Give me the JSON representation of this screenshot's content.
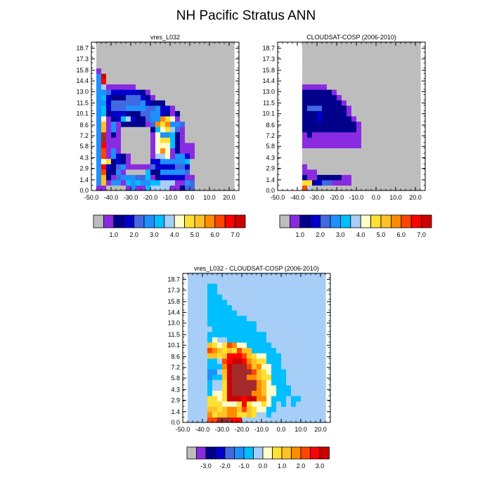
{
  "title": "NH Pacific Stratus ANN",
  "colors": {
    "missing": "#bdbdbd",
    "palette": [
      "#8a2be2",
      "#00008b",
      "#0000cd",
      "#4169e1",
      "#1e90ff",
      "#00bfff",
      "#a6cef7",
      "#ffffcc",
      "#ffe033",
      "#ffc125",
      "#ff8c00",
      "#ff4500",
      "#ff0000",
      "#cd0000",
      "#a52a2a",
      "#ff69b4"
    ]
  },
  "chart_data": [
    {
      "id": "model",
      "type": "heatmap",
      "title": "vres_L032",
      "x_ticks": [
        "-50.0",
        "-40.0",
        "-30.0",
        "-20.0",
        "-10.0",
        "0.0",
        "10.0",
        "20.0"
      ],
      "y_ticks": [
        "0.0",
        "1.4",
        "2.9",
        "4.3",
        "5.8",
        "7.2",
        "8.6",
        "10.1",
        "11.5",
        "13.0",
        "14.4",
        "15.8",
        "17.3",
        "18.7"
      ],
      "xlim": [
        -50,
        25
      ],
      "ylim": [
        0,
        19.5
      ],
      "x_centers": [
        -46.25,
        -43.75,
        -41.25,
        -38.75,
        -36.25,
        -33.75,
        -31.25,
        -28.75,
        -26.25,
        -23.75,
        -21.25,
        -18.75,
        -16.25,
        -13.75,
        -11.25,
        -8.75,
        -6.25,
        -3.75,
        -1.25,
        1.25,
        3.75,
        6.25,
        8.75,
        11.25,
        13.75,
        16.25,
        18.75,
        21.25,
        23.75
      ],
      "y_centers": [
        0.35,
        1.05,
        1.75,
        2.45,
        3.15,
        3.85,
        4.55,
        5.25,
        5.95,
        6.65,
        7.35,
        8.05,
        8.75,
        9.45,
        10.15,
        10.85,
        11.55,
        12.25,
        12.95,
        13.65,
        14.35,
        15.05,
        15.75,
        16.45,
        17.15,
        17.85,
        18.55,
        19.25
      ],
      "colorbar_labels": [
        "1.0",
        "2.0",
        "3.0",
        "4.0",
        "5.0",
        "6.0",
        "7.0"
      ],
      "colorbar_boxes": 15,
      "rows": [
        "BBAAAAaeaaGggggaBbEEAAAAAAAA",
        "FKaeeBGFGFFGGgggaaFEAAAAAAAA",
        "FKCBdeeeddGabcccccaaAAAAAAAA",
        "FMCCeaAAAAGbbeeeeedAAAAAAAAA",
        "FNDCdeaaaaadccccddcAAAAAAAAA",
        "FIJbcbaAAAAcceeeeefAAAAAAAAA",
        "FMaecbaAAAAaHghaeecaAAAAAAAA",
        "FMaeaAAAAAAahLIabaaaAAAAAAAA",
        "FNaaaAAAAAAaIIIfbaaaAAAAAAAA",
        "FPaaaAAAAAAaIJJfbaAAAAAAAAAA",
        "FPabaAAAAAAaheefbaAAAAAAAAAA",
        "FKaeaAAAAAAbfIJgdaAAAAAAAAAA",
        "FKaeabbbbbadLJLeedAAAAAAAAAA",
        "FIabcfgcbbdeeLJhaAAAAAAAAAAA",
        "FGbcccbbbddeecbabAAAAAAAAAAA",
        "FGcdddeeeeddeccaAAAAAAAAAAAA",
        "FFcddddddecbbbAAAAAAAAAAAAAA",
        "FGcbbbdddcbaAAAAAAAAAAAAAAAA",
        "FFdccccccbaAAAAAAAAAAAAAAAAA",
        "FHaaaaaaAAAAAAAAAAAAAAAAAAAA",
        "FNAAAAAAAAAAAAAAAAAAAAAAAAAA",
        "FOAAAAAAAAAAAAAAAAAAAAAAAAAA",
        "aAAAAAAAAAAAAAAAAAAAAAAAAAAA",
        "AAAAAAAAAAAAAAAAAAAAAAAAAAAA",
        "AAAAAAAAAAAAAAAAAAAAAAAAAAAA",
        "AAAAAAAAAAAAAAAAAAAAAAAAAAAA",
        "AAAAAAAAAAAAAAAAAAAAAAAAAAAA",
        "AAAAAAAAAAAAAAAAAAAAAAAAAAAA"
      ]
    },
    {
      "id": "obs",
      "type": "heatmap",
      "title": "CLOUDSAT-COSP (2006-2010)",
      "x_ticks": [
        "-50.0",
        "-40.0",
        "-30.0",
        "-20.0",
        "-10.0",
        "0.0",
        "10.0",
        "20.0"
      ],
      "y_ticks": [
        "0.0",
        "1.4",
        "2.9",
        "4.3",
        "5.8",
        "7.2",
        "8.6",
        "10.1",
        "11.5",
        "13.0",
        "14.4",
        "15.8",
        "17.3",
        "18.7"
      ],
      "xlim": [
        -50,
        25
      ],
      "ylim": [
        0,
        19.5
      ],
      "x_centers": [
        -46.25,
        -43.75,
        -41.25,
        -38.75,
        -36.25,
        -33.75,
        -31.25,
        -28.75,
        -26.25,
        -23.75,
        -21.25,
        -18.75,
        -16.25,
        -13.75,
        -11.25,
        -8.75,
        -6.25,
        -3.75,
        -1.25,
        1.25,
        3.75,
        6.25,
        8.75,
        11.25,
        13.75,
        16.25,
        18.75,
        21.25,
        23.75
      ],
      "y_centers": [
        0.35,
        1.05,
        1.75,
        2.45,
        3.15,
        3.85,
        4.55,
        5.25,
        5.95,
        6.65,
        7.35,
        8.05,
        8.75,
        9.45,
        10.15,
        10.85,
        11.55,
        12.25,
        12.95,
        13.65,
        14.35,
        15.05,
        15.75,
        16.45,
        17.15,
        17.85,
        18.55,
        19.25
      ],
      "colorbar_labels": [
        "1.0",
        "2.0",
        "3.0",
        "4.0",
        "5.0",
        "6.0",
        "7.0"
      ],
      "colorbar_boxes": 15,
      "rows": [
        "WWWWMHAAAAAAAAAAAAAAAAAAAAAA",
        "WWWWJJbcddaaaaAAAAAAAAAAAAAA",
        "WWWWbaabbbbbaaAAAAAAAAAAAAAA",
        "WWWWaaaAAAAAAAAAAAAAAAAAAAAA",
        "WWWWaAAAAAAAAAAAAAAAAAAAAAAA",
        "WWWWAAAAAAAAAAAAAAAAAAAAAAAA",
        "WWWWAAAAAAAAAAAAAAAAAAAAAAAA",
        "WWWWAAAAAAAAAAAAAAAAAAAAAAAA",
        "WWWWaaaaaaaaaaaaAAAAAAAAAAAA",
        "WWWWaaaaaaaaaaaaAAAAAAAAAAAA",
        "WWWWabaaaaaaaaaaAAAAAAAAAAAA",
        "WWWWbbbbbbbbbbbaAAAAAAAAAAAA",
        "WWWWbbbbbbbbbbbaAAAAAAAAAAAA",
        "WWWWbbbcbbbbbbaAAAAAAAAAAAAA",
        "WWWWbbbcbbbbbaAAAAAAAAAAAAAA",
        "WWWWbdddbbbbbaAAAAAAAAAAAAAA",
        "WWWWbbbbbbbbaAAAAAAAAAAAAAAA",
        "WWWWbbbbbbbaAAAAAAAAAAAAAAAA",
        "WWWWbbbbbbaAAAAAAAAAAAAAAAAA",
        "WWWWaaaaaAAAAAAAAAAAAAAAAAAA",
        "WWWWAAAAAAAAAAAAAAAAAAAAAAAA",
        "WWWWAAAAAAAAAAAAAAAAAAAAAAAA",
        "WWWWAAAAAAAAAAAAAAAAAAAAAAAA",
        "WWWWAAAAAAAAAAAAAAAAAAAAAAAA",
        "WWWWAAAAAAAAAAAAAAAAAAAAAAAA",
        "WWWWAAAAAAAAAAAAAAAAAAAAAAAA",
        "WWWWAAAAAAAAAAAAAAAAAAAAAAAA",
        "WWWWAAAAAAAAAAAAAAAAAAAAAAAA"
      ]
    },
    {
      "id": "diff",
      "type": "heatmap",
      "title": "vres_L032 - CLOUDSAT-COSP (2006-2010)",
      "x_ticks": [
        "-50.0",
        "-40.0",
        "-30.0",
        "-20.0",
        "-10.0",
        "0.0",
        "10.0",
        "20.0"
      ],
      "y_ticks": [
        "0.0",
        "1.4",
        "2.9",
        "4.3",
        "5.8",
        "7.2",
        "8.6",
        "10.1",
        "11.5",
        "13.0",
        "14.4",
        "15.8",
        "17.3",
        "18.7"
      ],
      "xlim": [
        -50,
        25
      ],
      "ylim": [
        0,
        19.5
      ],
      "x_centers": [
        -46.25,
        -43.75,
        -41.25,
        -38.75,
        -36.25,
        -33.75,
        -31.25,
        -28.75,
        -26.25,
        -23.75,
        -21.25,
        -18.75,
        -16.25,
        -13.75,
        -11.25,
        -8.75,
        -6.25,
        -3.75,
        -1.25,
        1.25,
        3.75,
        6.25,
        8.75,
        11.25,
        13.75,
        16.25,
        18.75,
        21.25,
        23.75
      ],
      "y_centers": [
        0.35,
        1.05,
        1.75,
        2.45,
        3.15,
        3.85,
        4.55,
        5.25,
        5.95,
        6.65,
        7.35,
        8.05,
        8.75,
        9.45,
        10.15,
        10.85,
        11.55,
        12.25,
        12.95,
        13.65,
        14.35,
        15.05,
        15.75,
        16.45,
        17.15,
        17.85,
        18.55,
        19.25
      ],
      "colorbar_labels": [
        "-3.0",
        "-2.0",
        "-1.0",
        "0.0",
        "1.0",
        "2.0",
        "3.0"
      ],
      "colorbar_boxes": 15,
      "rows": [
        "HHHHMMPPPNNHHHHHHHHHHHHHHHHH",
        "HHHHLJKKLLJJKJHHGHHHHHHHHHHH",
        "HHHHKKJKLLKMKJIIGGHHHHHHHHHH",
        "HHHHJJJIIIJNJIIJIGHGHGHHHHHH",
        "HHHHJJIJOOONOOLLIGGGHGGHHHHH",
        "HHHHGIIJOPPPPLLKIIGGGHHHHHHH",
        "HHHHGHHJOPPPPPLKIIGGGHHHHHHH",
        "HHHHGHHJOPPPPPLKIGGGHHHHHHHH",
        "HHHHFGGKOPPPLLKJJGGGHHHHHHHH",
        "HHHHFFHKOPPPPMKJIGGGHHHHHHHH",
        "HHHHGGGLOPPPMKLIIGGHHHHHHHHH",
        "HHHHGGHMNOONLKJJGGGHHHHHHHHH",
        "HHHHKKJKNNNMKJIIGGGHHHHHHHHH",
        "HHHHMLKJKJMKKGGGGGHHHHHHHHHH",
        "HHHHKJIJMLIIGGGGGHHHHHHHHHHH",
        "HHHHGIHHGGGGGGGGHHHHHHHHHHHH",
        "HHHHGGGGGGGGGGGGHHHHHHHHHHHH",
        "HHHHHGGGGGGGGGHHHHHHHHHHHHHH",
        "HHHHGGGGGGGGGGHHHHHHHHHHHHHH",
        "HHHHGGGGGGGGHHHHHHHHHHHHHHHH",
        "HHHHGGGGGGHHHHHHHHHHHHHHHHHH",
        "HHHHGGGGGHHHHHHHHHHHHHHHHHHH",
        "HHHHGGGGHHHHHHHHHHHHHHHHHHHH",
        "HHHHGGGHHHHHHHHHHHHHHHHHHHHH",
        "HHHHGGHHHHHHHHHHHHHHHHHHHHHH",
        "HHHHGGHHHHHHHHHHHHHHHHHHHHHH",
        "HHHHHHHHHHHHHHHHHHHHHHHHHHHH",
        "HHHHHHHHHHHHHHHHHHHHHHHHHHHH"
      ]
    }
  ]
}
